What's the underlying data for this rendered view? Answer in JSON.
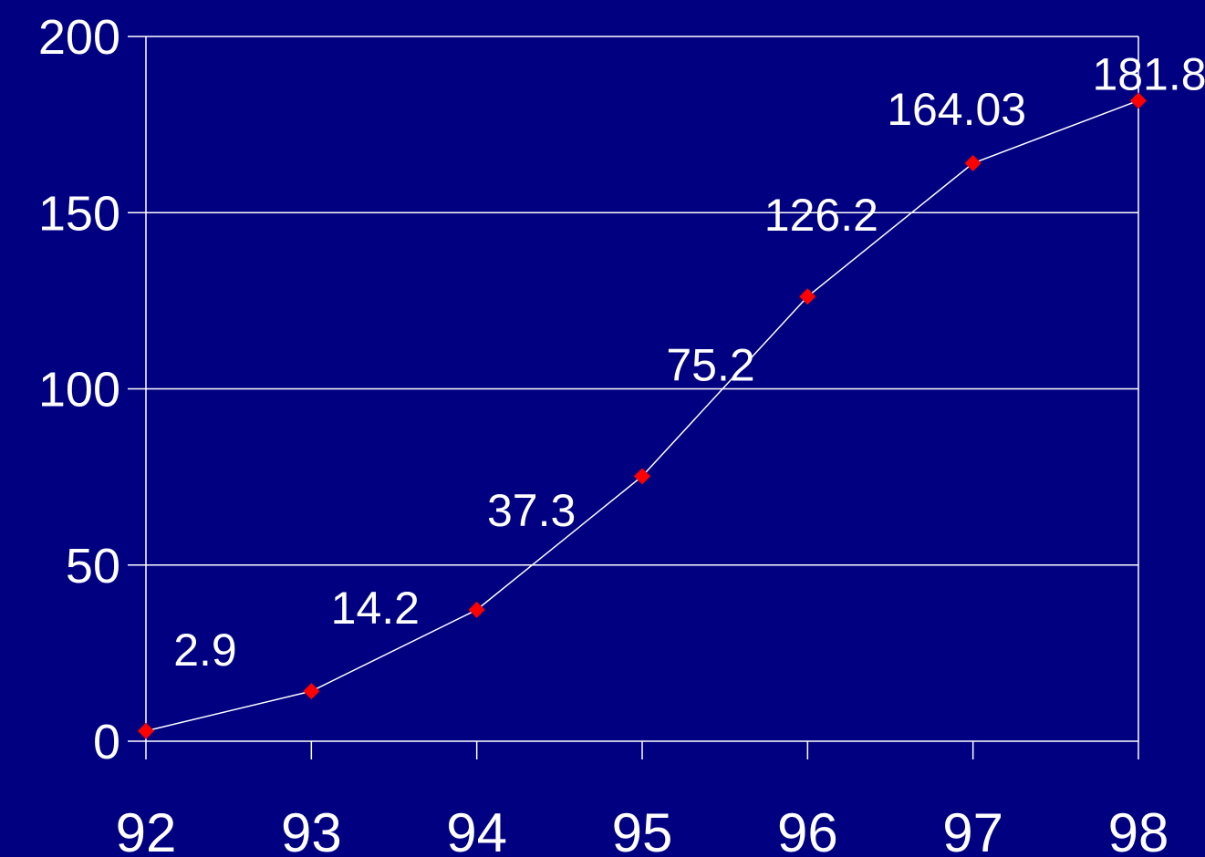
{
  "chart_data": {
    "type": "line",
    "title": "",
    "xlabel": "",
    "ylabel": "",
    "categories": [
      "92",
      "93",
      "94",
      "95",
      "96",
      "97",
      "98"
    ],
    "series": [
      {
        "values": [
          2.9,
          14.2,
          37.3,
          75.2,
          126.2,
          164.03,
          181.8
        ],
        "labels": [
          "2.9",
          "14.2",
          "37.3",
          "75.2",
          "126.2",
          "164.03",
          "181.8"
        ]
      }
    ],
    "yticks": [
      "0",
      "50",
      "100",
      "150",
      "200"
    ],
    "ylim": [
      0,
      200
    ],
    "grid": true,
    "legend": "none",
    "colors": {
      "background": "#000080",
      "line": "#ffffff",
      "marker": "#ff0000",
      "grid": "#ffffff",
      "text": "#ffffff"
    }
  }
}
